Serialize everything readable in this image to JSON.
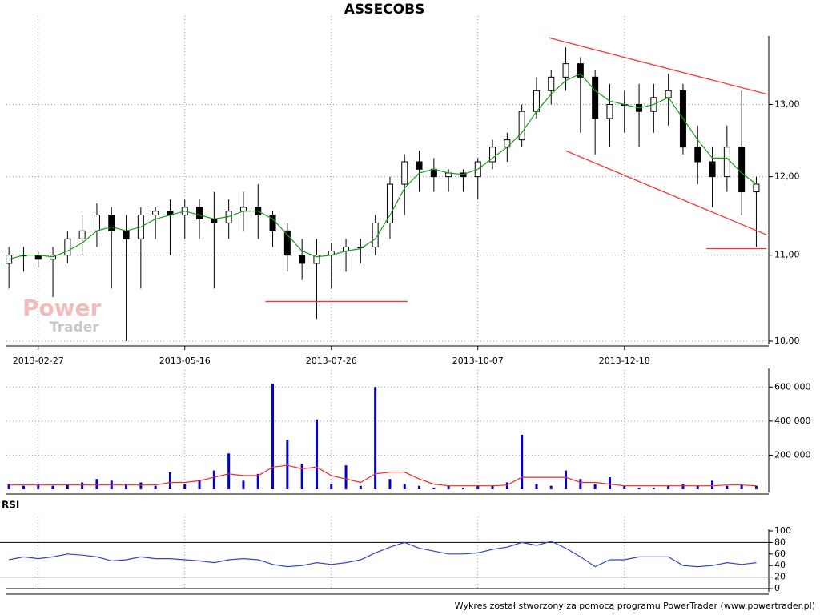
{
  "chart_data": [
    {
      "type": "candlestick",
      "title": "ASSECOBS",
      "categories": [
        null,
        null,
        "2013-02-27",
        null,
        null,
        null,
        null,
        null,
        null,
        null,
        null,
        null,
        "2013-05-16",
        null,
        null,
        null,
        null,
        null,
        null,
        null,
        null,
        null,
        "2013-07-26",
        null,
        null,
        null,
        null,
        null,
        null,
        null,
        null,
        null,
        "2013-10-07",
        null,
        null,
        null,
        null,
        null,
        null,
        null,
        null,
        null,
        "2013-12-18",
        null,
        null,
        null,
        null,
        null,
        null,
        null,
        null,
        null
      ],
      "open": [
        10.9,
        11.0,
        11.0,
        10.95,
        11.0,
        11.2,
        11.3,
        11.5,
        11.3,
        11.2,
        11.5,
        11.55,
        11.5,
        11.6,
        11.45,
        11.4,
        11.55,
        11.6,
        11.5,
        11.3,
        11.0,
        10.9,
        11.0,
        11.05,
        11.1,
        11.1,
        11.4,
        11.9,
        12.2,
        12.1,
        12.0,
        12.05,
        12.0,
        12.2,
        12.4,
        12.5,
        12.9,
        13.2,
        13.4,
        13.6,
        13.4,
        12.8,
        13.0,
        13.0,
        12.9,
        13.1,
        13.2,
        12.4,
        12.2,
        12.0,
        12.4,
        11.8
      ],
      "high": [
        11.1,
        11.1,
        11.05,
        11.1,
        11.3,
        11.5,
        11.65,
        11.6,
        11.5,
        11.6,
        11.6,
        11.7,
        11.7,
        11.7,
        11.8,
        11.7,
        11.8,
        11.9,
        11.55,
        11.4,
        11.2,
        11.2,
        11.15,
        11.2,
        11.2,
        11.5,
        12.0,
        12.3,
        12.35,
        12.25,
        12.1,
        12.1,
        12.25,
        12.5,
        12.6,
        13.0,
        13.4,
        13.5,
        13.85,
        13.7,
        13.5,
        13.3,
        13.2,
        13.3,
        13.3,
        13.45,
        13.3,
        12.7,
        12.4,
        12.7,
        13.2,
        12.0
      ],
      "low": [
        10.6,
        10.8,
        10.85,
        10.5,
        10.9,
        11.0,
        11.1,
        10.6,
        10.0,
        10.6,
        11.2,
        11.0,
        11.2,
        11.2,
        10.6,
        11.2,
        11.3,
        11.2,
        11.1,
        10.8,
        10.7,
        10.25,
        10.6,
        10.8,
        10.9,
        11.0,
        11.2,
        11.5,
        11.8,
        11.8,
        11.8,
        11.8,
        11.7,
        12.1,
        12.2,
        12.4,
        12.8,
        13.0,
        13.2,
        12.6,
        12.3,
        12.4,
        12.6,
        12.4,
        12.6,
        12.7,
        12.3,
        11.9,
        11.6,
        11.8,
        11.5,
        11.1
      ],
      "close": [
        11.0,
        11.0,
        10.95,
        11.0,
        11.2,
        11.3,
        11.5,
        11.3,
        11.2,
        11.5,
        11.55,
        11.5,
        11.6,
        11.45,
        11.4,
        11.55,
        11.6,
        11.5,
        11.3,
        11.0,
        10.9,
        11.0,
        11.05,
        11.1,
        11.1,
        11.4,
        11.9,
        12.2,
        12.1,
        12.0,
        12.05,
        12.0,
        12.2,
        12.4,
        12.5,
        12.9,
        13.2,
        13.4,
        13.6,
        13.4,
        12.8,
        13.0,
        13.0,
        12.9,
        13.1,
        13.2,
        12.4,
        12.2,
        12.0,
        12.4,
        11.8,
        11.9
      ],
      "up_color": "#ffffff",
      "down_color": "#000000",
      "ma": {
        "color": "#1a9e1a",
        "values": [
          10.95,
          11.0,
          11.0,
          10.98,
          11.05,
          11.15,
          11.3,
          11.35,
          11.3,
          11.35,
          11.45,
          11.5,
          11.55,
          11.5,
          11.45,
          11.48,
          11.55,
          11.55,
          11.45,
          11.25,
          11.05,
          10.98,
          11.0,
          11.05,
          11.08,
          11.2,
          11.5,
          11.85,
          12.05,
          12.1,
          12.05,
          12.03,
          12.1,
          12.25,
          12.4,
          12.6,
          12.9,
          13.15,
          13.35,
          13.45,
          13.2,
          13.05,
          13.0,
          12.95,
          13.0,
          13.1,
          12.8,
          12.5,
          12.25,
          12.25,
          12.05,
          11.9
        ]
      },
      "trendlines": {
        "color": "#ff3333",
        "lines": [
          {
            "x": [
              36.8,
              51.7
            ],
            "y": [
              14.0,
              13.15
            ]
          },
          {
            "x": [
              38.0,
              51.7
            ],
            "y": [
              12.35,
              11.25
            ]
          },
          {
            "x": [
              47.6,
              51.7
            ],
            "y": [
              11.08,
              11.08
            ]
          },
          {
            "x": [
              17.5,
              27.2
            ],
            "y": [
              10.45,
              10.45
            ]
          }
        ]
      },
      "ylim": [
        10,
        14
      ],
      "log": true,
      "yticks": [
        {
          "value": 10,
          "label": "10,00"
        },
        {
          "value": 11,
          "label": "11,00"
        },
        {
          "value": 12,
          "label": "12,00"
        },
        {
          "value": 13,
          "label": "13,00"
        }
      ],
      "grid": true,
      "watermark": [
        "Power",
        "Trader"
      ]
    },
    {
      "type": "bar",
      "values": [
        30000,
        20000,
        30000,
        20000,
        30000,
        40000,
        60000,
        50000,
        30000,
        40000,
        20000,
        100000,
        30000,
        50000,
        110000,
        210000,
        50000,
        90000,
        620000,
        290000,
        150000,
        410000,
        30000,
        140000,
        20000,
        600000,
        60000,
        30000,
        20000,
        10000,
        20000,
        10000,
        20000,
        20000,
        40000,
        320000,
        30000,
        20000,
        110000,
        60000,
        30000,
        70000,
        20000,
        10000,
        10000,
        20000,
        30000,
        20000,
        50000,
        20000,
        30000,
        20000
      ],
      "color": "#0000cc",
      "ma": {
        "color": "#ff2222",
        "values": [
          25000,
          25000,
          25000,
          25000,
          25000,
          25000,
          25000,
          25000,
          25000,
          25000,
          25000,
          40000,
          40000,
          50000,
          70000,
          90000,
          80000,
          80000,
          130000,
          140000,
          120000,
          130000,
          80000,
          60000,
          40000,
          90000,
          100000,
          100000,
          60000,
          30000,
          20000,
          20000,
          20000,
          20000,
          25000,
          70000,
          70000,
          70000,
          70000,
          40000,
          40000,
          30000,
          20000,
          20000,
          20000,
          20000,
          20000,
          20000,
          20000,
          25000,
          25000,
          20000
        ]
      },
      "ylim": [
        0,
        700000
      ],
      "yticks": [
        {
          "value": 200000,
          "label": "200 000"
        },
        {
          "value": 400000,
          "label": "400 000"
        },
        {
          "value": 600000,
          "label": "600 000"
        }
      ],
      "grid": true
    },
    {
      "type": "line",
      "title": "RSI",
      "values": [
        50,
        55,
        52,
        55,
        60,
        58,
        55,
        48,
        50,
        55,
        52,
        52,
        50,
        48,
        45,
        50,
        52,
        50,
        42,
        38,
        40,
        45,
        42,
        45,
        50,
        62,
        72,
        80,
        70,
        65,
        60,
        60,
        62,
        68,
        72,
        80,
        75,
        82,
        70,
        55,
        38,
        50,
        50,
        55,
        55,
        55,
        40,
        38,
        40,
        45,
        42,
        45
      ],
      "color": "#3344cc",
      "levels": [
        20,
        80
      ],
      "ylim": [
        0,
        100
      ],
      "yticks": [
        0,
        20,
        40,
        60,
        80,
        100
      ],
      "grid": true
    }
  ],
  "footer": "Wykres został stworzony za pomocą programu PowerTrader (www.powertrader.pl)"
}
